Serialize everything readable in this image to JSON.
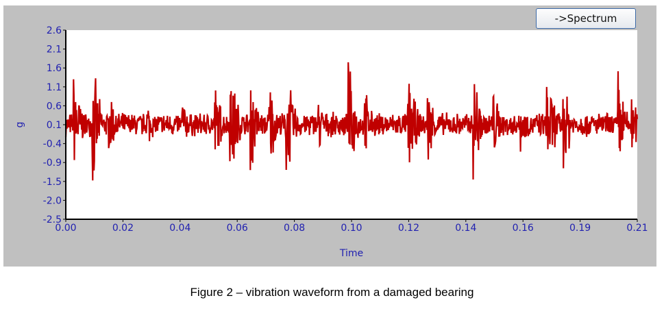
{
  "button": {
    "label": "->Spectrum"
  },
  "caption": "Figure 2 – vibration waveform from a damaged bearing",
  "colors": {
    "series": "#c00000",
    "axis_text": "#2020b0",
    "panel": "#c0c0c0"
  },
  "chart_data": {
    "type": "line",
    "title": "",
    "xlabel": "Time",
    "ylabel": "g",
    "xlim": [
      0,
      0.21
    ],
    "ylim": [
      -2.5,
      2.6
    ],
    "x_tick_labels": [
      "0.00",
      "0.02",
      "0.04",
      "0.06",
      "0.08",
      "0.10",
      "0.12",
      "0.14",
      "0.16",
      "0.19",
      "0.21"
    ],
    "y_tick_labels": [
      "2.6",
      "2.1",
      "1.6",
      "1.1",
      "0.6",
      "0.1",
      "-0.4",
      "-0.9",
      "-1.5",
      "-2.0",
      "-2.5"
    ],
    "grid": false,
    "series": [
      {
        "name": "vibration waveform",
        "color": "#c00000",
        "bursts": [
          {
            "t": 0.003,
            "amp": 1.8
          },
          {
            "t": 0.01,
            "amp": 1.9
          },
          {
            "t": 0.016,
            "amp": 1.2
          },
          {
            "t": 0.03,
            "amp": 0.8
          },
          {
            "t": 0.043,
            "amp": 0.8
          },
          {
            "t": 0.055,
            "amp": 1.3
          },
          {
            "t": 0.0605,
            "amp": 2.15
          },
          {
            "t": 0.068,
            "amp": 1.6
          },
          {
            "t": 0.075,
            "amp": 1.4
          },
          {
            "t": 0.081,
            "amp": 2.05
          },
          {
            "t": 0.093,
            "amp": 0.9
          },
          {
            "t": 0.104,
            "amp": 1.9
          },
          {
            "t": 0.11,
            "amp": 1.1
          },
          {
            "t": 0.126,
            "amp": 1.8
          },
          {
            "t": 0.133,
            "amp": 1.3
          },
          {
            "t": 0.15,
            "amp": 1.95
          },
          {
            "t": 0.157,
            "amp": 1.3
          },
          {
            "t": 0.167,
            "amp": 0.9
          },
          {
            "t": 0.177,
            "amp": 1.9
          },
          {
            "t": 0.183,
            "amp": 1.6
          },
          {
            "t": 0.203,
            "amp": 1.7
          },
          {
            "t": 0.208,
            "amp": 1.0
          }
        ],
        "noise_floor": 0.35
      }
    ]
  }
}
